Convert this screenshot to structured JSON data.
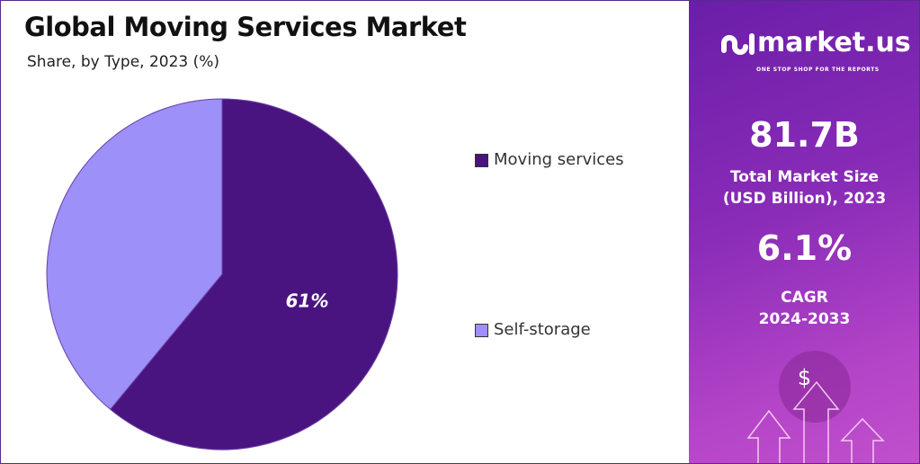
{
  "chart_data": {
    "type": "pie",
    "title": "Global Moving Services Market",
    "subtitle": "Share, by Type, 2023 (%)",
    "categories": [
      "Moving services",
      "Self-storage"
    ],
    "values": [
      61,
      39
    ],
    "colors": [
      "#4a1480",
      "#9d90f8"
    ],
    "data_labels": [
      "61%",
      ""
    ],
    "legend_placement": "right"
  },
  "brand": {
    "name": "market.us",
    "tagline": "ONE STOP SHOP FOR THE REPORTS"
  },
  "stats": {
    "market_size": "81.7B",
    "market_size_label_1": "Total Market Size",
    "market_size_label_2": "(USD Billion), 2023",
    "cagr": "6.1%",
    "cagr_label_1": "CAGR",
    "cagr_label_2": "2024-2033"
  },
  "decor": {
    "dollar": "$"
  }
}
